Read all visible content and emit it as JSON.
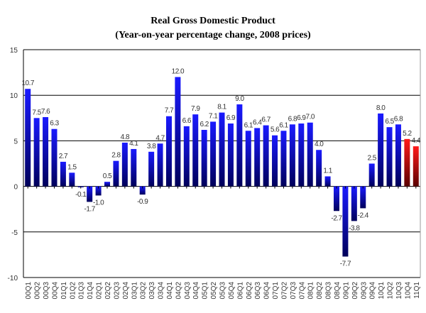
{
  "chart_data": {
    "type": "bar",
    "title": "Real Gross Domestic Product",
    "subtitle": "(Year-on-year percentage change, 2008 prices)",
    "xlabel": "",
    "ylabel": "",
    "ylim": [
      -10,
      15
    ],
    "yticks": [
      -10,
      -5,
      0,
      5,
      10,
      15
    ],
    "grid": true,
    "categories": [
      "00Q1",
      "00Q2",
      "00Q3",
      "00Q4",
      "01Q1",
      "01Q2",
      "01Q3",
      "01Q4",
      "02Q1",
      "02Q2",
      "02Q3",
      "02Q4",
      "03Q1",
      "03Q2",
      "03Q3",
      "03Q4",
      "04Q1",
      "04Q2",
      "04Q3",
      "04Q4",
      "05Q1",
      "05Q2",
      "05Q3",
      "05Q4",
      "06Q1",
      "06Q2",
      "06Q3",
      "06Q4",
      "07Q1",
      "07Q2",
      "07Q3",
      "07Q4",
      "08Q1",
      "08Q2",
      "08Q3",
      "08Q4",
      "09Q1",
      "09Q2",
      "09Q3",
      "09Q4",
      "10Q1",
      "10Q2",
      "10Q3",
      "10Q4",
      "11Q1"
    ],
    "values": [
      10.7,
      7.5,
      7.6,
      6.3,
      2.7,
      1.5,
      -0.1,
      -1.7,
      -1.0,
      0.5,
      2.8,
      4.8,
      4.1,
      -0.9,
      3.8,
      4.7,
      7.7,
      12.0,
      6.6,
      7.9,
      6.2,
      7.1,
      8.1,
      6.9,
      9.0,
      6.1,
      6.4,
      6.7,
      5.6,
      6.1,
      6.8,
      6.9,
      7.0,
      4.0,
      1.1,
      -2.7,
      -7.7,
      -3.8,
      -2.4,
      2.5,
      8.0,
      6.5,
      6.8,
      5.2,
      4.4
    ],
    "colors": {
      "default": "#0000ee",
      "highlight": "#dd0000"
    },
    "highlighted_categories": [
      "10Q4",
      "11Q1"
    ]
  }
}
